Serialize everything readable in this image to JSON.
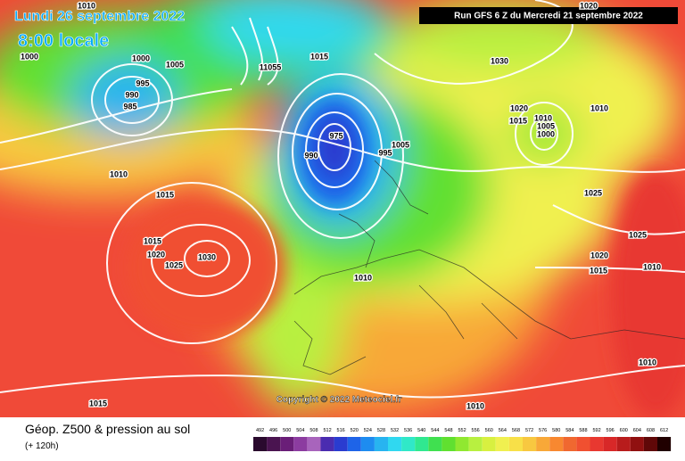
{
  "header": {
    "date": "Lundi 26 septembre 2022",
    "time": "8:00 locale",
    "run": "Run GFS 6 Z du Mercredi 21 septembre 2022"
  },
  "copyright": "Copyright © 2022 Meteociel.fr",
  "footer": {
    "title": "Géop. Z500 & pression au sol",
    "lead": "(+ 120h)"
  },
  "isobar_labels": [
    "1010",
    "1000",
    "1000",
    "1005",
    "995",
    "990",
    "985",
    "11055",
    "1015",
    "1030",
    "1020",
    "1015",
    "1010",
    "1005",
    "1000",
    "1010",
    "975",
    "990",
    "1005",
    "995",
    "1010",
    "1015",
    "1015",
    "1020",
    "1025",
    "1030",
    "1025",
    "1025",
    "1020",
    "1015",
    "1010",
    "1010",
    "1010",
    "1015",
    "1010",
    "1020"
  ],
  "legend": {
    "ticks": [
      492,
      496,
      500,
      504,
      508,
      512,
      516,
      520,
      524,
      528,
      532,
      536,
      540,
      544,
      548,
      552,
      556,
      560,
      564,
      568,
      572,
      576,
      580,
      584,
      588,
      592,
      596,
      600,
      604,
      608,
      612
    ],
    "colors": [
      "#2a0a2e",
      "#4a1450",
      "#6a1e78",
      "#8c3ca0",
      "#a864bc",
      "#4a2cb0",
      "#2a3cd0",
      "#1e64e8",
      "#1e8cf0",
      "#28b4f0",
      "#30d8f0",
      "#30e8c8",
      "#30e890",
      "#40e050",
      "#60e030",
      "#90e830",
      "#b8f040",
      "#d8f040",
      "#f0f050",
      "#f8e048",
      "#f8c840",
      "#f8a838",
      "#f88830",
      "#f06830",
      "#f05030",
      "#e83830",
      "#d82828",
      "#b81c1c",
      "#901010",
      "#600808",
      "#200000"
    ]
  }
}
